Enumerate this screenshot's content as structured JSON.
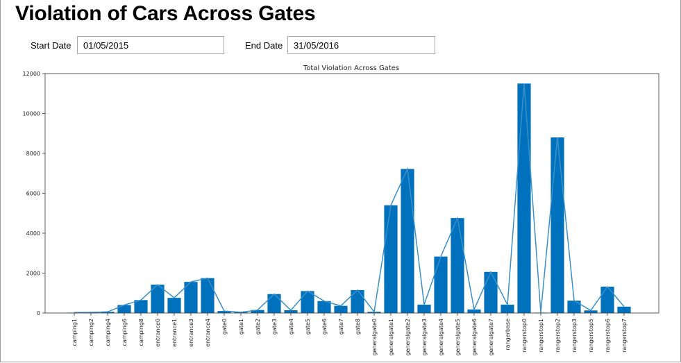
{
  "page": {
    "title": "Violation of Cars Across Gates"
  },
  "filters": {
    "start_label": "Start Date",
    "start_value": "01/05/2015",
    "end_label": "End Date",
    "end_value": "31/05/2016"
  },
  "chart_data": {
    "type": "bar",
    "title": "Total Violation Across Gates",
    "xlabel": "",
    "ylabel": "",
    "ylim": [
      0,
      12000
    ],
    "yticks": [
      0,
      2000,
      4000,
      6000,
      8000,
      10000,
      12000
    ],
    "grid": false,
    "bar_color": "#0072bd",
    "line_color": "#3a8fc9",
    "overlay_line": true,
    "categories": [
      "camping1",
      "camping2",
      "camping4",
      "camping6",
      "camping8",
      "entrance0",
      "entrance1",
      "entrance3",
      "entrance4",
      "gate0",
      "gate1",
      "gate2",
      "gate3",
      "gate4",
      "gate5",
      "gate6",
      "gate7",
      "gate8",
      "generalgate0",
      "generalgate1",
      "generalgate2",
      "generalgate3",
      "generalgate4",
      "generalgate5",
      "generalgate6",
      "generalgate7",
      "rangerbase",
      "rangerstop0",
      "rangerstop1",
      "rangerstop2",
      "rangerstop3",
      "rangerstop5",
      "rangerstop6",
      "rangerstop7"
    ],
    "values": [
      20,
      30,
      60,
      400,
      650,
      1420,
      760,
      1560,
      1750,
      100,
      40,
      150,
      950,
      140,
      1100,
      600,
      360,
      1150,
      60,
      5400,
      7220,
      420,
      2830,
      4760,
      180,
      2060,
      420,
      11500,
      20,
      8800,
      620,
      130,
      1320,
      320
    ]
  }
}
